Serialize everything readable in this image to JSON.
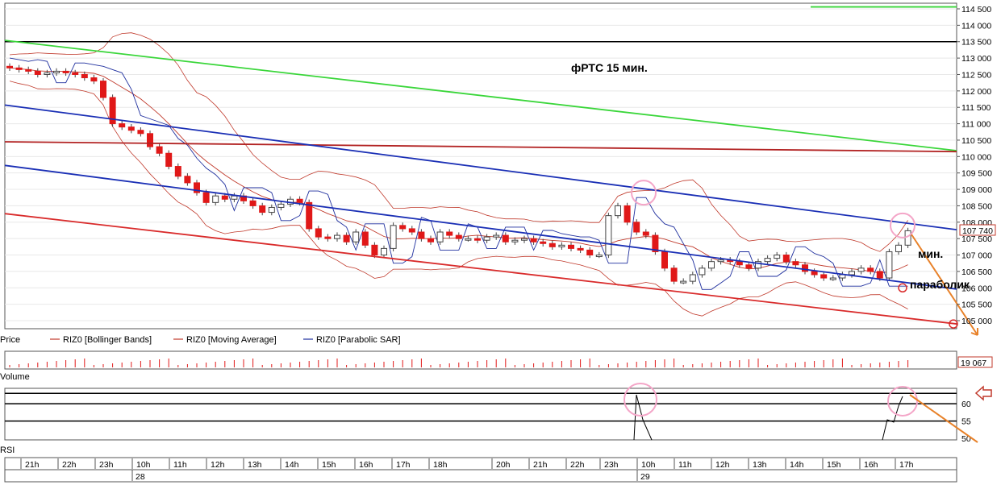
{
  "chart_data": [
    {
      "type": "candlestick",
      "title": "фРТС  15  мин.",
      "instrument": "RIZ0",
      "timeframe": "15 min",
      "price_axis": {
        "ylim": [
          104600,
          114600
        ],
        "ticks": [
          105000,
          105500,
          106000,
          106500,
          107000,
          107500,
          108000,
          108500,
          109000,
          109500,
          110000,
          110500,
          111000,
          111500,
          112000,
          112500,
          113000,
          113500,
          114000,
          114500
        ],
        "tick_labels": [
          "105 000",
          "105 500",
          "106 000",
          "106 500",
          "107 000",
          "107 500",
          "108 000",
          "108 500",
          "109 000",
          "109 500",
          "110 000",
          "110 500",
          "111 000",
          "111 500",
          "112 000",
          "112 500",
          "113 000",
          "113 500",
          "114 000",
          "114 500"
        ],
        "last_price_label": "107 740",
        "last_price": 107740
      },
      "legend": [
        {
          "label": "Price"
        },
        {
          "label": "RIZ0 [Bollinger Bands]",
          "color": "#c0392b"
        },
        {
          "label": "RIZ0 [Moving Average]",
          "color": "#c0392b"
        },
        {
          "label": "RIZ0 [Parabolic SAR]",
          "color": "#1f2f9e"
        }
      ],
      "closes": [
        112700,
        112650,
        112600,
        112500,
        112550,
        112600,
        112550,
        112500,
        112400,
        112300,
        111800,
        111000,
        110900,
        110800,
        110700,
        110300,
        110100,
        109700,
        109400,
        109200,
        108900,
        108600,
        108800,
        108700,
        108800,
        108650,
        108500,
        108300,
        108450,
        108550,
        108700,
        108600,
        107800,
        107550,
        107500,
        107600,
        107400,
        107700,
        107300,
        107000,
        107200,
        107900,
        107800,
        107700,
        107500,
        107400,
        107700,
        107600,
        107500,
        107500,
        107450,
        107550,
        107600,
        107400,
        107450,
        107500,
        107400,
        107350,
        107250,
        107300,
        107200,
        107150,
        107000,
        107000,
        108200,
        108500,
        108000,
        107700,
        107600,
        107100,
        106600,
        106200,
        106200,
        106400,
        106600,
        106800,
        106850,
        106800,
        106700,
        106600,
        106800,
        106900,
        107000,
        106800,
        106700,
        106500,
        106400,
        106300,
        106300,
        106400,
        106500,
        106600,
        106500,
        106300,
        107100,
        107300,
        107740
      ],
      "annotations": [
        "мин.",
        "параболик"
      ],
      "series_colors": {
        "up": "#ffffff",
        "down": "#e01818",
        "bollinger": "#c0392b",
        "sar": "#1f2f9e",
        "channel_blue": "#1a2fb5",
        "trend_red": "#d92b2b",
        "trend_green": "#3ad63a",
        "level_black": "#000000",
        "level_red": "#b22222",
        "arrow": "#e8822a",
        "highlight": "#f4a6c8"
      }
    },
    {
      "type": "bar",
      "title": "Volume",
      "last_value_label": "19 067",
      "color": "#e01818"
    },
    {
      "type": "line",
      "title": "RSI",
      "ylim": [
        50,
        64
      ],
      "ticks": [
        50,
        55,
        60
      ],
      "tick_labels": [
        "50",
        "55",
        "60"
      ],
      "levels": [
        63,
        60,
        55
      ],
      "color": "#000000"
    }
  ],
  "time_axis": {
    "hours": [
      "21h",
      "22h",
      "23h",
      "10h",
      "11h",
      "12h",
      "13h",
      "14h",
      "15h",
      "16h",
      "17h",
      "18h",
      "20h",
      "21h",
      "22h",
      "23h",
      "10h",
      "11h",
      "12h",
      "13h",
      "14h",
      "15h",
      "16h",
      "17h"
    ],
    "days": [
      "28",
      "29"
    ]
  }
}
